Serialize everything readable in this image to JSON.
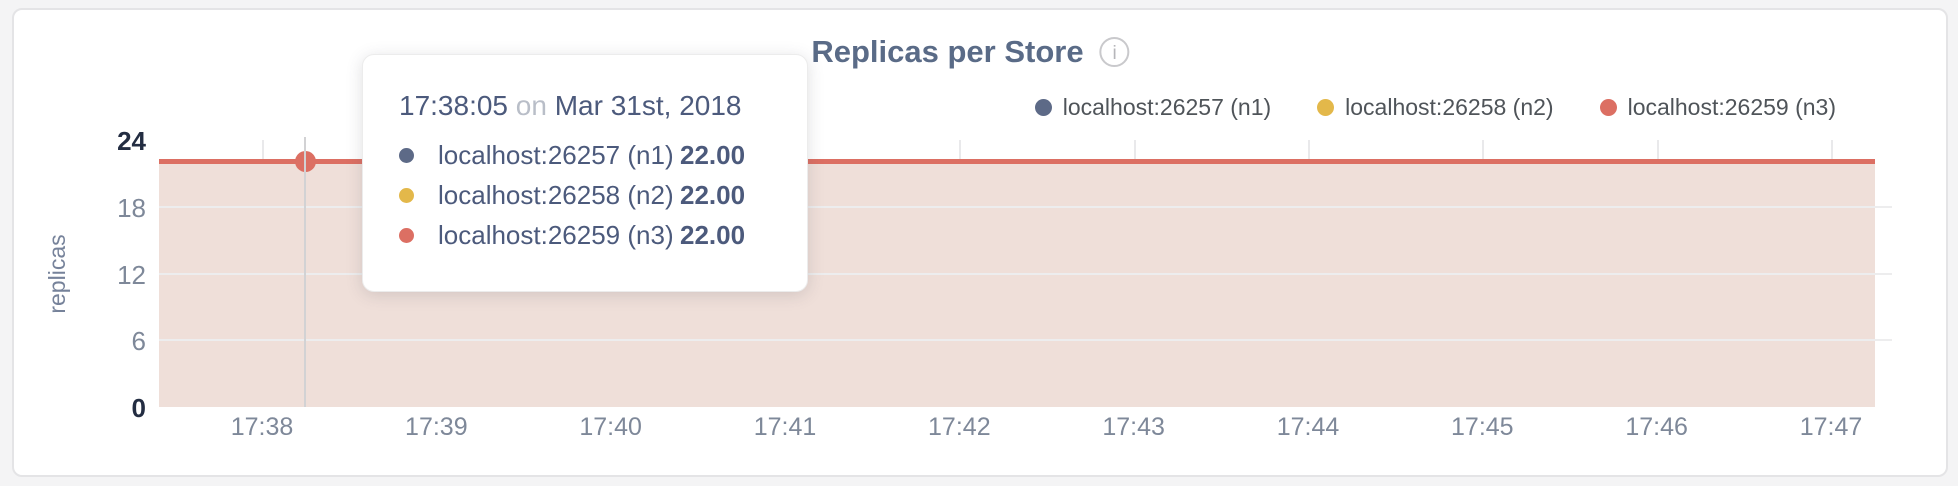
{
  "header": {
    "title": "Replicas per Store",
    "info_icon": "i"
  },
  "legend": {
    "items": [
      {
        "label": "localhost:26257 (n1)",
        "color": "#5d6a87"
      },
      {
        "label": "localhost:26258 (n2)",
        "color": "#e3b84a"
      },
      {
        "label": "localhost:26259 (n3)",
        "color": "#dc6f63"
      }
    ]
  },
  "chart_data": {
    "type": "line",
    "title": "Replicas per Store",
    "xlabel": "",
    "ylabel": "replicas",
    "x_ticks": [
      "17:38",
      "17:39",
      "17:40",
      "17:41",
      "17:42",
      "17:43",
      "17:44",
      "17:45",
      "17:46",
      "17:47"
    ],
    "y_ticks": [
      0,
      6,
      12,
      18,
      24
    ],
    "ylim": [
      0,
      24
    ],
    "grid": true,
    "legend_position": "top-right",
    "series": [
      {
        "name": "localhost:26257 (n1)",
        "color": "#5d6a87",
        "constant_value": 22
      },
      {
        "name": "localhost:26258 (n2)",
        "color": "#e3b84a",
        "constant_value": 22
      },
      {
        "name": "localhost:26259 (n3)",
        "color": "#dc6f63",
        "constant_value": 22
      }
    ],
    "visible_line_color": "#dc6f63",
    "fill_color": "#efdfd9",
    "hover_point": {
      "time": "17:38:05",
      "value": 22
    }
  },
  "tooltip": {
    "time": "17:38:05",
    "conjunction": "on",
    "date": "Mar 31st, 2018",
    "rows": [
      {
        "name": "localhost:26257 (n1)",
        "value": "22.00",
        "color": "#5d6a87"
      },
      {
        "name": "localhost:26258 (n2)",
        "value": "22.00",
        "color": "#e3b84a"
      },
      {
        "name": "localhost:26259 (n3)",
        "value": "22.00",
        "color": "#dc6f63"
      }
    ]
  }
}
